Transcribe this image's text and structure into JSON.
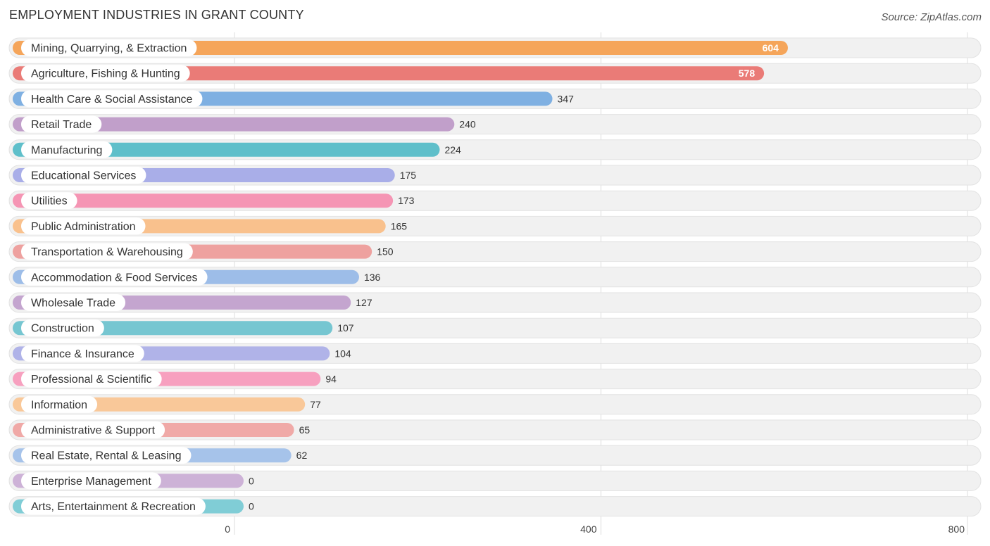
{
  "header": {
    "title": "EMPLOYMENT INDUSTRIES IN GRANT COUNTY",
    "source": "Source: ZipAtlas.com"
  },
  "chart_data": {
    "type": "bar",
    "orientation": "horizontal",
    "title": "EMPLOYMENT INDUSTRIES IN GRANT COUNTY",
    "xlim": [
      0,
      800
    ],
    "ticks": [
      0,
      400,
      800
    ],
    "grid": true,
    "categories": [
      "Mining, Quarrying, & Extraction",
      "Agriculture, Fishing & Hunting",
      "Health Care & Social Assistance",
      "Retail Trade",
      "Manufacturing",
      "Educational Services",
      "Utilities",
      "Public Administration",
      "Transportation & Warehousing",
      "Accommodation & Food Services",
      "Wholesale Trade",
      "Construction",
      "Finance & Insurance",
      "Professional & Scientific",
      "Information",
      "Administrative & Support",
      "Real Estate, Rental & Leasing",
      "Enterprise Management",
      "Arts, Entertainment & Recreation"
    ],
    "values": [
      604,
      578,
      347,
      240,
      224,
      175,
      173,
      165,
      150,
      136,
      127,
      107,
      104,
      94,
      77,
      65,
      62,
      0,
      0
    ],
    "colors": [
      "#f5a55a",
      "#ea7b77",
      "#7fb0e2",
      "#c19fca",
      "#5fbfca",
      "#a9aee8",
      "#f595b4",
      "#f9c18d",
      "#eea19f",
      "#9dbde8",
      "#c4a5cf",
      "#76c6d1",
      "#b0b3e8",
      "#f7a0bf",
      "#f9c899",
      "#f0a9a7",
      "#a6c3ea",
      "#cdb2d7",
      "#80cdd6"
    ]
  }
}
